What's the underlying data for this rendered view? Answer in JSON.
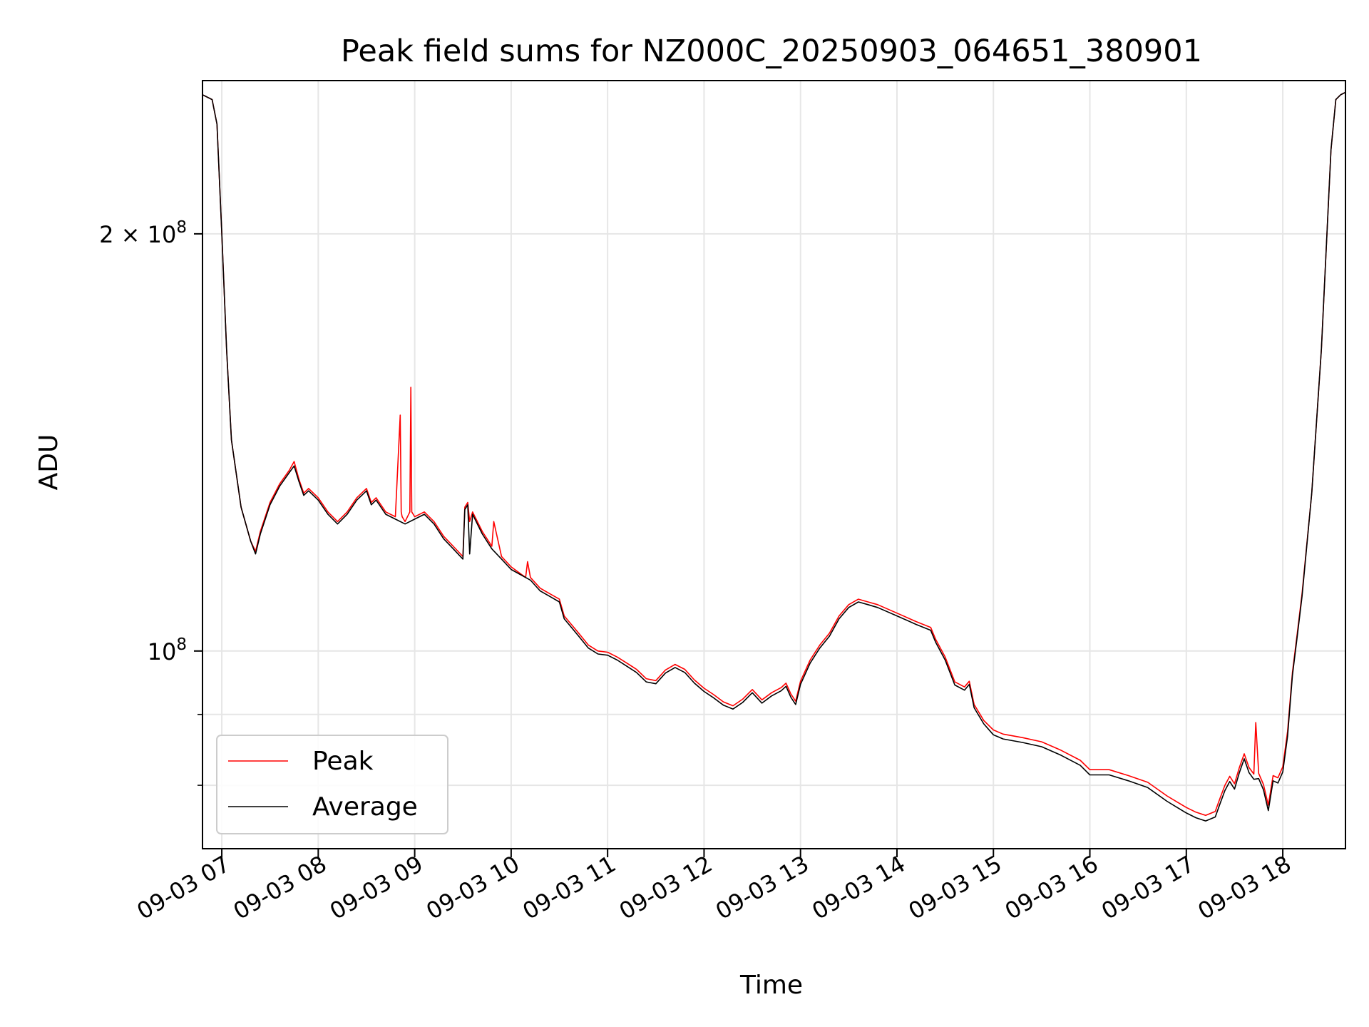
{
  "chart_data": {
    "type": "line",
    "title": "Peak field sums for NZ000C_20250903_064651_380901",
    "xlabel": "Time",
    "ylabel": "ADU",
    "x_unit": "hours of day (2025-09-03)",
    "xlim": [
      6.8,
      18.65
    ],
    "ylim": [
      72000000,
      258000000
    ],
    "yscale": "log",
    "grid": true,
    "legend_position": "lower-left",
    "x_tick_labels": [
      "09-03 07",
      "09-03 08",
      "09-03 09",
      "09-03 10",
      "09-03 11",
      "09-03 12",
      "09-03 13",
      "09-03 14",
      "09-03 15",
      "09-03 16",
      "09-03 17",
      "09-03 18"
    ],
    "y_tick_labels": [
      {
        "value": 100000000,
        "base": "10",
        "exp": "8"
      },
      {
        "value": 200000000,
        "base": "2 × 10",
        "exp": "8"
      }
    ],
    "series": [
      {
        "name": "Peak",
        "color": "#ff0000",
        "x": [
          6.8,
          6.9,
          6.95,
          7.0,
          7.05,
          7.1,
          7.2,
          7.3,
          7.35,
          7.4,
          7.5,
          7.6,
          7.7,
          7.75,
          7.8,
          7.85,
          7.9,
          8.0,
          8.1,
          8.2,
          8.3,
          8.4,
          8.5,
          8.55,
          8.6,
          8.7,
          8.8,
          8.85,
          8.86,
          8.87,
          8.9,
          8.95,
          8.96,
          8.97,
          9.0,
          9.1,
          9.2,
          9.3,
          9.4,
          9.5,
          9.52,
          9.55,
          9.57,
          9.6,
          9.7,
          9.8,
          9.82,
          9.9,
          10.0,
          10.15,
          10.17,
          10.2,
          10.3,
          10.4,
          10.5,
          10.55,
          10.6,
          10.7,
          10.8,
          10.9,
          11.0,
          11.1,
          11.2,
          11.3,
          11.4,
          11.5,
          11.6,
          11.7,
          11.8,
          11.9,
          12.0,
          12.1,
          12.2,
          12.3,
          12.4,
          12.5,
          12.6,
          12.7,
          12.8,
          12.85,
          12.9,
          12.95,
          13.0,
          13.1,
          13.2,
          13.3,
          13.4,
          13.5,
          13.6,
          13.7,
          13.8,
          14.0,
          14.2,
          14.35,
          14.4,
          14.5,
          14.6,
          14.7,
          14.75,
          14.8,
          14.9,
          15.0,
          15.1,
          15.3,
          15.5,
          15.7,
          15.9,
          16.0,
          16.2,
          16.4,
          16.6,
          16.8,
          17.0,
          17.1,
          17.2,
          17.3,
          17.35,
          17.4,
          17.45,
          17.5,
          17.55,
          17.6,
          17.65,
          17.7,
          17.72,
          17.75,
          17.8,
          17.85,
          17.9,
          17.95,
          18.0,
          18.05,
          18.1,
          18.15,
          18.2,
          18.3,
          18.4,
          18.5,
          18.55,
          18.6,
          18.65
        ],
        "y": [
          252000000,
          250000000,
          240000000,
          200000000,
          165000000,
          142000000,
          127000000,
          120000000,
          118000000,
          122000000,
          128000000,
          132000000,
          135000000,
          137000000,
          133000000,
          130000000,
          131000000,
          129000000,
          126000000,
          124000000,
          126000000,
          129000000,
          131000000,
          128000000,
          129000000,
          126000000,
          125000000,
          148000000,
          126000000,
          125000000,
          124000000,
          126000000,
          155000000,
          126000000,
          125000000,
          126000000,
          124000000,
          121000000,
          119000000,
          117000000,
          127000000,
          128000000,
          124000000,
          126000000,
          122000000,
          119000000,
          124000000,
          117000000,
          115000000,
          113000000,
          116000000,
          113000000,
          111000000,
          110000000,
          109000000,
          106000000,
          105000000,
          103000000,
          101000000,
          100000000,
          99800000,
          99000000,
          98000000,
          97000000,
          95500000,
          95200000,
          96900000,
          97800000,
          97000000,
          95300000,
          94000000,
          93000000,
          91900000,
          91300000,
          92300000,
          93800000,
          92200000,
          93300000,
          94100000,
          94800000,
          93100000,
          92000000,
          95100000,
          98500000,
          101000000,
          103000000,
          106000000,
          108000000,
          109000000,
          108500000,
          108000000,
          106500000,
          105000000,
          104000000,
          102000000,
          99000000,
          95000000,
          94200000,
          95100000,
          91500000,
          89100000,
          87700000,
          87100000,
          86600000,
          86000000,
          84800000,
          83400000,
          82100000,
          82100000,
          81300000,
          80400000,
          78600000,
          77100000,
          76500000,
          76100000,
          76600000,
          78300000,
          80000000,
          81200000,
          80200000,
          82400000,
          84300000,
          82400000,
          81500000,
          88800000,
          81600000,
          80100000,
          77400000,
          81300000,
          81000000,
          82500000,
          87500000,
          96500000,
          103000000,
          110000000,
          130000000,
          165000000,
          230000000,
          250000000,
          252000000,
          253000000
        ]
      },
      {
        "name": "Average",
        "color": "#000000",
        "x": [
          6.8,
          6.9,
          6.95,
          7.0,
          7.05,
          7.1,
          7.2,
          7.3,
          7.35,
          7.4,
          7.5,
          7.6,
          7.7,
          7.75,
          7.8,
          7.85,
          7.9,
          8.0,
          8.1,
          8.2,
          8.3,
          8.4,
          8.5,
          8.55,
          8.6,
          8.7,
          8.8,
          8.9,
          9.0,
          9.1,
          9.2,
          9.3,
          9.4,
          9.5,
          9.52,
          9.55,
          9.57,
          9.6,
          9.7,
          9.8,
          9.9,
          10.0,
          10.2,
          10.3,
          10.4,
          10.5,
          10.55,
          10.6,
          10.7,
          10.8,
          10.9,
          11.0,
          11.1,
          11.2,
          11.3,
          11.4,
          11.5,
          11.6,
          11.7,
          11.8,
          11.9,
          12.0,
          12.1,
          12.2,
          12.3,
          12.4,
          12.5,
          12.6,
          12.7,
          12.8,
          12.85,
          12.9,
          12.95,
          13.0,
          13.1,
          13.2,
          13.3,
          13.4,
          13.5,
          13.6,
          13.7,
          13.8,
          14.0,
          14.2,
          14.35,
          14.4,
          14.5,
          14.6,
          14.7,
          14.75,
          14.8,
          14.9,
          15.0,
          15.1,
          15.3,
          15.5,
          15.7,
          15.9,
          16.0,
          16.2,
          16.4,
          16.6,
          16.8,
          17.0,
          17.1,
          17.2,
          17.3,
          17.35,
          17.4,
          17.45,
          17.5,
          17.55,
          17.6,
          17.65,
          17.7,
          17.75,
          17.8,
          17.85,
          17.9,
          17.95,
          18.0,
          18.05,
          18.1,
          18.15,
          18.2,
          18.3,
          18.4,
          18.5,
          18.55,
          18.6,
          18.65
        ],
        "y": [
          252000000,
          250000000,
          240000000,
          200000000,
          165000000,
          142000000,
          127000000,
          120000000,
          117500000,
          121500000,
          127500000,
          131500000,
          134500000,
          136000000,
          132500000,
          129500000,
          130500000,
          128500000,
          125500000,
          123500000,
          125500000,
          128500000,
          130500000,
          127500000,
          128500000,
          125500000,
          124500000,
          123500000,
          124500000,
          125500000,
          123500000,
          120500000,
          118500000,
          116500000,
          126500000,
          127500000,
          117500000,
          125500000,
          121500000,
          118500000,
          116500000,
          114500000,
          112500000,
          110500000,
          109500000,
          108500000,
          105500000,
          104500000,
          102500000,
          100500000,
          99500000,
          99300000,
          98500000,
          97500000,
          96500000,
          95000000,
          94700000,
          96400000,
          97300000,
          96500000,
          94800000,
          93500000,
          92500000,
          91400000,
          90800000,
          91800000,
          93300000,
          91700000,
          92800000,
          93600000,
          94300000,
          92600000,
          91500000,
          94600000,
          98000000,
          100500000,
          102500000,
          105500000,
          107500000,
          108500000,
          108000000,
          107500000,
          106000000,
          104500000,
          103500000,
          101500000,
          98500000,
          94500000,
          93700000,
          94600000,
          91000000,
          88600000,
          87000000,
          86400000,
          85900000,
          85300000,
          84100000,
          82700000,
          81400000,
          81400000,
          80600000,
          79700000,
          77900000,
          76400000,
          75800000,
          75400000,
          75900000,
          77600000,
          79300000,
          80500000,
          79500000,
          81700000,
          83600000,
          81700000,
          80800000,
          80900000,
          79400000,
          76700000,
          80600000,
          80300000,
          81800000,
          86800000,
          96000000,
          102500000,
          109500000,
          130000000,
          165000000,
          230000000,
          250000000,
          252000000,
          253000000
        ]
      }
    ]
  }
}
